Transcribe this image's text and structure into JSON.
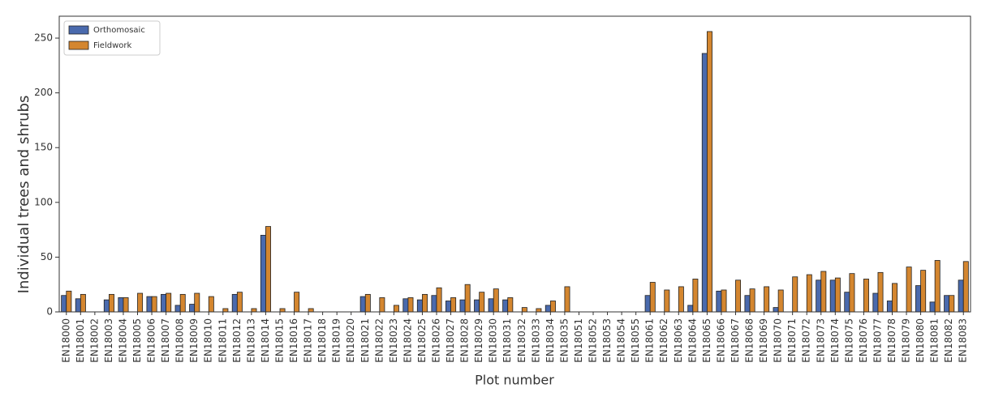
{
  "chart_data": {
    "type": "bar",
    "y_label": "Individual trees and shrubs",
    "x_label": "Plot number",
    "categories": [
      "EN18000",
      "EN18001",
      "EN18002",
      "EN18003",
      "EN18004",
      "EN18005",
      "EN18006",
      "EN18007",
      "EN18008",
      "EN18009",
      "EN18010",
      "EN18011",
      "EN18012",
      "EN18013",
      "EN18014",
      "EN18015",
      "EN18016",
      "EN18017",
      "EN18018",
      "EN18019",
      "EN18020",
      "EN18021",
      "EN18022",
      "EN18023",
      "EN18024",
      "EN18025",
      "EN18026",
      "EN18027",
      "EN18028",
      "EN18029",
      "EN18030",
      "EN18031",
      "EN18032",
      "EN18033",
      "EN18034",
      "EN18035",
      "EN18051",
      "EN18052",
      "EN18053",
      "EN18054",
      "EN18055",
      "EN18061",
      "EN18062",
      "EN18063",
      "EN18064",
      "EN18065",
      "EN18066",
      "EN18067",
      "EN18068",
      "EN18069",
      "EN18070",
      "EN18071",
      "EN18072",
      "EN18073",
      "EN18074",
      "EN18075",
      "EN18076",
      "EN18077",
      "EN18078",
      "EN18079",
      "EN18080",
      "EN18081",
      "EN18082",
      "EN18083"
    ],
    "series": [
      {
        "name": "Orthomosaic",
        "color": "#4a6aad",
        "values": [
          15,
          12,
          0,
          11,
          13,
          0,
          14,
          16,
          6,
          7,
          0,
          0,
          16,
          0,
          70,
          0,
          0,
          0,
          0,
          0,
          0,
          14,
          0,
          0,
          12,
          11,
          15,
          10,
          11,
          11,
          12,
          11,
          0,
          0,
          6,
          0,
          0,
          0,
          0,
          0,
          0,
          15,
          0,
          0,
          6,
          236,
          19,
          0,
          15,
          0,
          4,
          0,
          0,
          29,
          29,
          18,
          0,
          17,
          10,
          0,
          24,
          9,
          15,
          29
        ]
      },
      {
        "name": "Fieldwork",
        "color": "#d4862f",
        "values": [
          19,
          16,
          0,
          16,
          13,
          17,
          14,
          17,
          16,
          17,
          14,
          3,
          18,
          3,
          78,
          3,
          18,
          3,
          0,
          0,
          0,
          16,
          13,
          6,
          13,
          16,
          22,
          13,
          25,
          18,
          21,
          13,
          4,
          3,
          10,
          23,
          0,
          0,
          0,
          0,
          0,
          27,
          20,
          23,
          30,
          256,
          20,
          29,
          21,
          23,
          20,
          32,
          34,
          37,
          31,
          35,
          30,
          36,
          26,
          41,
          38,
          47,
          15,
          46
        ]
      }
    ],
    "ylim": [
      0,
      270
    ],
    "yticks": [
      0,
      50,
      100,
      150,
      200,
      250
    ],
    "legend": "upper left"
  }
}
